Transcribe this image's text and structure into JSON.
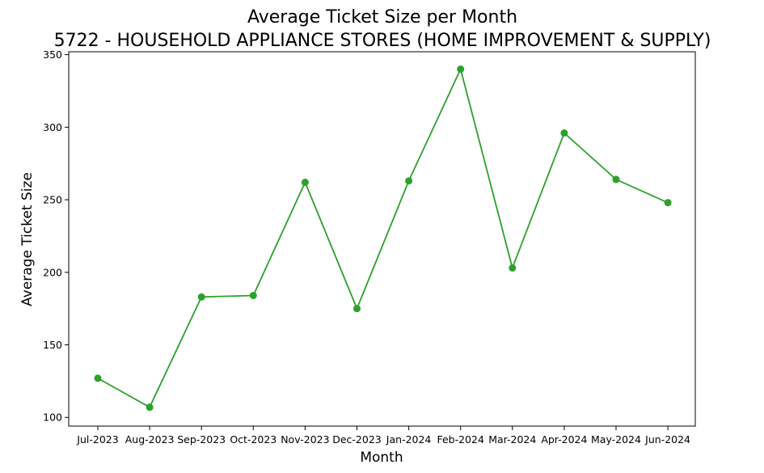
{
  "chart_data": {
    "type": "line",
    "title": "Average Ticket Size per Month",
    "subtitle": "5722 - HOUSEHOLD APPLIANCE STORES (HOME IMPROVEMENT & SUPPLY)",
    "xlabel": "Month",
    "ylabel": "Average Ticket Size",
    "categories": [
      "Jul-2023",
      "Aug-2023",
      "Sep-2023",
      "Oct-2023",
      "Nov-2023",
      "Dec-2023",
      "Jan-2024",
      "Feb-2024",
      "Mar-2024",
      "Apr-2024",
      "May-2024",
      "Jun-2024"
    ],
    "series": [
      {
        "values": [
          127,
          107,
          183,
          184,
          262,
          175,
          263,
          340,
          203,
          296,
          264,
          248
        ],
        "color": "#2ca02c",
        "marker": "circle"
      }
    ],
    "yticks": [
      100,
      150,
      200,
      250,
      300,
      350
    ],
    "ylim": [
      94,
      352
    ],
    "grid": false
  }
}
